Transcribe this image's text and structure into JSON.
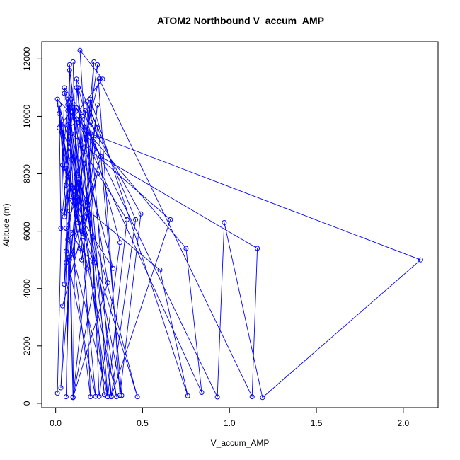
{
  "chart_data": {
    "type": "line",
    "title": "ATOM2 Northbound V_accum_AMP",
    "xlabel": "V_accum_AMP",
    "ylabel": "Altitude (m)",
    "xlim": [
      -0.08,
      2.2
    ],
    "ylim": [
      -150,
      12600
    ],
    "xticks": [
      0.0,
      0.5,
      1.0,
      1.5,
      2.0
    ],
    "xtick_labels": [
      "0.0",
      "0.5",
      "1.0",
      "1.5",
      "2.0"
    ],
    "yticks": [
      0,
      2000,
      4000,
      6000,
      8000,
      10000,
      12000
    ],
    "ytick_labels": [
      "0",
      "2000",
      "4000",
      "6000",
      "8000",
      "10000",
      "12000"
    ],
    "grid": false,
    "series": [
      {
        "color": "#0000ff",
        "marker": "open-circle",
        "points": [
          [
            0.01,
            350
          ],
          [
            0.05,
            10800
          ],
          [
            0.15,
            10000
          ],
          [
            0.08,
            9600
          ],
          [
            0.12,
            7200
          ],
          [
            0.06,
            6100
          ],
          [
            0.3,
            230
          ],
          [
            0.05,
            11000
          ],
          [
            0.25,
            9300
          ],
          [
            0.38,
            270
          ],
          [
            0.07,
            10200
          ],
          [
            0.2,
            9400
          ],
          [
            2.1,
            5000
          ],
          [
            1.19,
            200
          ],
          [
            0.97,
            6300
          ],
          [
            0.93,
            220
          ],
          [
            0.12,
            10300
          ],
          [
            0.26,
            8600
          ],
          [
            0.08,
            5000
          ],
          [
            0.1,
            220
          ],
          [
            0.07,
            10400
          ],
          [
            0.22,
            9200
          ],
          [
            0.75,
            5400
          ],
          [
            0.84,
            380
          ],
          [
            0.13,
            9800
          ],
          [
            0.26,
            8600
          ],
          [
            1.16,
            5400
          ],
          [
            1.13,
            230
          ],
          [
            0.25,
            11300
          ],
          [
            0.12,
            8000
          ],
          [
            0.06,
            5300
          ],
          [
            0.23,
            240
          ],
          [
            0.09,
            9400
          ],
          [
            0.66,
            6400
          ],
          [
            0.32,
            230
          ],
          [
            0.14,
            9000
          ],
          [
            0.41,
            6400
          ],
          [
            0.3,
            230
          ],
          [
            0.17,
            10200
          ],
          [
            0.12,
            6900
          ],
          [
            0.1,
            5200
          ],
          [
            0.2,
            230
          ],
          [
            0.13,
            11000
          ],
          [
            0.37,
            5600
          ],
          [
            0.25,
            240
          ],
          [
            0.18,
            10500
          ],
          [
            0.46,
            6400
          ],
          [
            0.32,
            260
          ],
          [
            0.2,
            9800
          ],
          [
            0.49,
            6600
          ],
          [
            0.37,
            280
          ],
          [
            0.24,
            11800
          ],
          [
            0.08,
            5100
          ],
          [
            0.06,
            230
          ],
          [
            0.09,
            10600
          ],
          [
            0.28,
            300
          ],
          [
            0.12,
            11300
          ],
          [
            0.24,
            9600
          ],
          [
            0.15,
            5000
          ],
          [
            0.02,
            10100
          ],
          [
            0.18,
            4700
          ],
          [
            0.1,
            200
          ],
          [
            0.12,
            11000
          ],
          [
            0.3,
            4200
          ],
          [
            0.1,
            200
          ],
          [
            0.22,
            4100
          ],
          [
            0.14,
            12300
          ],
          [
            0.27,
            11300
          ],
          [
            0.07,
            9700
          ],
          [
            0.06,
            4900
          ],
          [
            0.05,
            4150
          ],
          [
            0.07,
            7200
          ],
          [
            0.33,
            4700
          ],
          [
            0.07,
            10600
          ],
          [
            0.04,
            8300
          ],
          [
            0.15,
            7000
          ],
          [
            0.22,
            11900
          ],
          [
            0.18,
            6600
          ],
          [
            0.04,
            3400
          ],
          [
            0.24,
            8000
          ],
          [
            0.16,
            5900
          ],
          [
            0.08,
            11800
          ],
          [
            0.06,
            7600
          ],
          [
            0.08,
            6700
          ],
          [
            0.03,
            9700
          ],
          [
            0.1,
            8500
          ],
          [
            0.05,
            6500
          ],
          [
            0.07,
            7900
          ],
          [
            0.35,
            230
          ],
          [
            0.08,
            11600
          ],
          [
            0.09,
            8500
          ],
          [
            0.03,
            540
          ],
          [
            0.12,
            7500
          ],
          [
            0.1,
            11900
          ],
          [
            0.13,
            6300
          ],
          [
            0.02,
            9600
          ],
          [
            0.1,
            10300
          ],
          [
            0.04,
            6700
          ],
          [
            0.08,
            9100
          ],
          [
            0.05,
            8200
          ],
          [
            0.01,
            10600
          ],
          [
            0.12,
            9900
          ],
          [
            0.16,
            5800
          ],
          [
            0.08,
            10300
          ],
          [
            0.1,
            7500
          ],
          [
            0.47,
            230
          ],
          [
            0.02,
            10400
          ],
          [
            0.09,
            7200
          ],
          [
            0.6,
            4650
          ],
          [
            0.76,
            260
          ],
          [
            0.2,
            10600
          ],
          [
            0.18,
            9500
          ],
          [
            0.11,
            6000
          ],
          [
            0.03,
            6100
          ],
          [
            0.02,
            10400
          ],
          [
            0.07,
            5700
          ],
          [
            0.1,
            5900
          ],
          [
            0.14,
            5400
          ],
          [
            0.22,
            4900
          ],
          [
            0.15,
            6000
          ],
          [
            0.24,
            10400
          ],
          [
            0.18,
            7000
          ],
          [
            0.13,
            7800
          ],
          [
            0.11,
            7100
          ],
          [
            0.06,
            8200
          ]
        ]
      }
    ]
  }
}
